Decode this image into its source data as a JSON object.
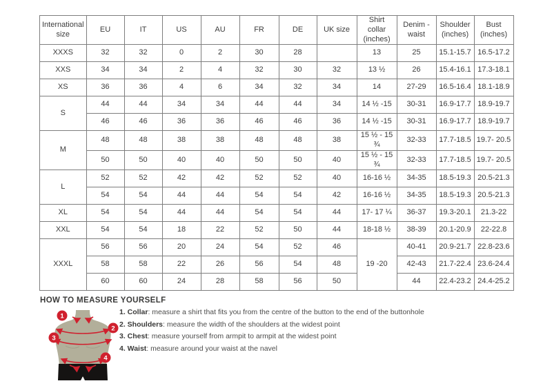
{
  "table": {
    "headers": [
      "International size",
      "EU",
      "IT",
      "US",
      "AU",
      "FR",
      "DE",
      "UK size",
      "Shirt collar (inches)",
      "Denim - waist",
      "Shoulder (inches)",
      "Bust (inches)"
    ],
    "rows": [
      [
        "XXXS",
        "32",
        "32",
        "0",
        "2",
        "30",
        "28",
        "",
        "13",
        "25",
        "15.1-15.7",
        "16.5-17.2"
      ],
      [
        "XXS",
        "34",
        "34",
        "2",
        "4",
        "32",
        "30",
        "32",
        "13 ½",
        "26",
        "15.4-16.1",
        "17.3-18.1"
      ],
      [
        "XS",
        "36",
        "36",
        "4",
        "6",
        "34",
        "32",
        "34",
        "14",
        "27-29",
        "16.5-16.4",
        "18.1-18.9"
      ],
      [
        {
          "t": "S",
          "rs": 2
        },
        "44",
        "44",
        "34",
        "34",
        "44",
        "44",
        "34",
        "14 ½ -15",
        "30-31",
        "16.9-17.7",
        "18.9-19.7"
      ],
      [
        null,
        "46",
        "46",
        "36",
        "36",
        "46",
        "46",
        "36",
        "14 ½ -15",
        "30-31",
        "16.9-17.7",
        "18.9-19.7"
      ],
      [
        {
          "t": "M",
          "rs": 2
        },
        "48",
        "48",
        "38",
        "38",
        "48",
        "48",
        "38",
        "15 ½ - 15 ¾",
        "32-33",
        "17.7-18.5",
        "19.7- 20.5"
      ],
      [
        null,
        "50",
        "50",
        "40",
        "40",
        "50",
        "50",
        "40",
        "15 ½ - 15 ¾",
        "32-33",
        "17.7-18.5",
        "19.7- 20.5"
      ],
      [
        {
          "t": "L",
          "rs": 2
        },
        "52",
        "52",
        "42",
        "42",
        "52",
        "52",
        "40",
        "16-16 ½",
        "34-35",
        "18.5-19.3",
        "20.5-21.3"
      ],
      [
        null,
        "54",
        "54",
        "44",
        "44",
        "54",
        "54",
        "42",
        "16-16 ½",
        "34-35",
        "18.5-19.3",
        "20.5-21.3"
      ],
      [
        "XL",
        "54",
        "54",
        "44",
        "44",
        "54",
        "54",
        "44",
        "17- 17 ¼",
        "36-37",
        "19.3-20.1",
        "21.3-22"
      ],
      [
        "XXL",
        "54",
        "54",
        "18",
        "22",
        "52",
        "50",
        "44",
        "18-18 ½",
        "38-39",
        "20.1-20.9",
        "22-22.8"
      ],
      [
        {
          "t": "XXXL",
          "rs": 3
        },
        "56",
        "56",
        "20",
        "24",
        "54",
        "52",
        "46",
        {
          "t": "19 -20",
          "rs": 3
        },
        "40-41",
        "20.9-21.7",
        "22.8-23.6"
      ],
      [
        null,
        "58",
        "58",
        "22",
        "26",
        "56",
        "54",
        "48",
        null,
        "42-43",
        "21.7-22.4",
        "23.6-24.4"
      ],
      [
        null,
        "60",
        "60",
        "24",
        "28",
        "58",
        "56",
        "50",
        null,
        "44",
        "22.4-23.2",
        "24.4-25.2"
      ]
    ]
  },
  "measure_guide": {
    "title": "HOW TO MEASURE YOURSELF",
    "markers": [
      "1",
      "2",
      "3",
      "4"
    ],
    "steps": [
      {
        "prefix": "1. Collar",
        "rest": ": measure a shirt that fits you from the centre of the button to the end of the buttonhole"
      },
      {
        "prefix": "2. Shoulders",
        "rest": ": measure the width of the shoulders at the widest point"
      },
      {
        "prefix": "3. Chest",
        "rest": ": measure yourself from armpit to armpit at the widest point"
      },
      {
        "prefix": "4. Waist",
        "rest": ": measure around your waist at the navel"
      }
    ],
    "colors": {
      "accent_red": "#d0202e",
      "mannequin": "#b2af9a",
      "shorts": "#151312"
    }
  }
}
